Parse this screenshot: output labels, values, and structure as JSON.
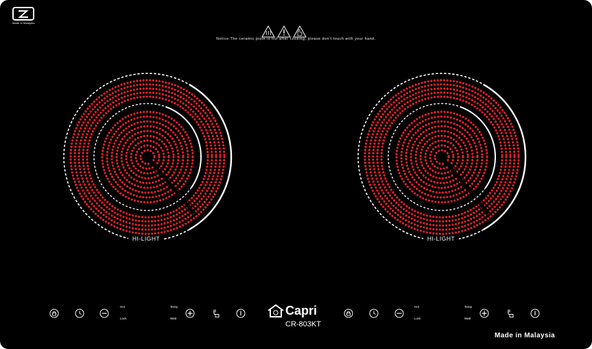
{
  "panel": {
    "background_color": "#000000",
    "accent_color": "#e0222a",
    "ring_color": "#ffffff"
  },
  "corner_logo": {
    "icon": "z-logo-icon",
    "text": "Made in Malaysia"
  },
  "warnings": {
    "icons": [
      "hot-surface-warning-icon",
      "caution-warning-icon",
      "no-touch-warning-icon"
    ],
    "notice": "Notice:The ceramic plate is hot after cooking, please don't touch with your hand."
  },
  "zones": [
    {
      "label": "HI-LIGHT"
    },
    {
      "label": "HI-LIGHT"
    }
  ],
  "controls": {
    "left": {
      "icons": [
        "lock-icon",
        "timer-icon",
        "minus-icon",
        "plus-icon",
        "function-icon",
        "power-icon"
      ],
      "mode_top_1": "Hot",
      "mode_bottom_1": "Lock",
      "mode_top_2": "Temp",
      "mode_bottom_2": "Watt"
    },
    "right": {
      "icons": [
        "lock-icon",
        "timer-icon",
        "minus-icon",
        "plus-icon",
        "function-icon",
        "power-icon"
      ],
      "mode_top_1": "Hot",
      "mode_bottom_1": "Lock",
      "mode_top_2": "Temp",
      "mode_bottom_2": "Watt"
    }
  },
  "brand": {
    "icon": "house-logo-icon",
    "name": "Capri",
    "model": "CR-803KT"
  },
  "footer": {
    "made_in": "Made in Malaysia"
  }
}
